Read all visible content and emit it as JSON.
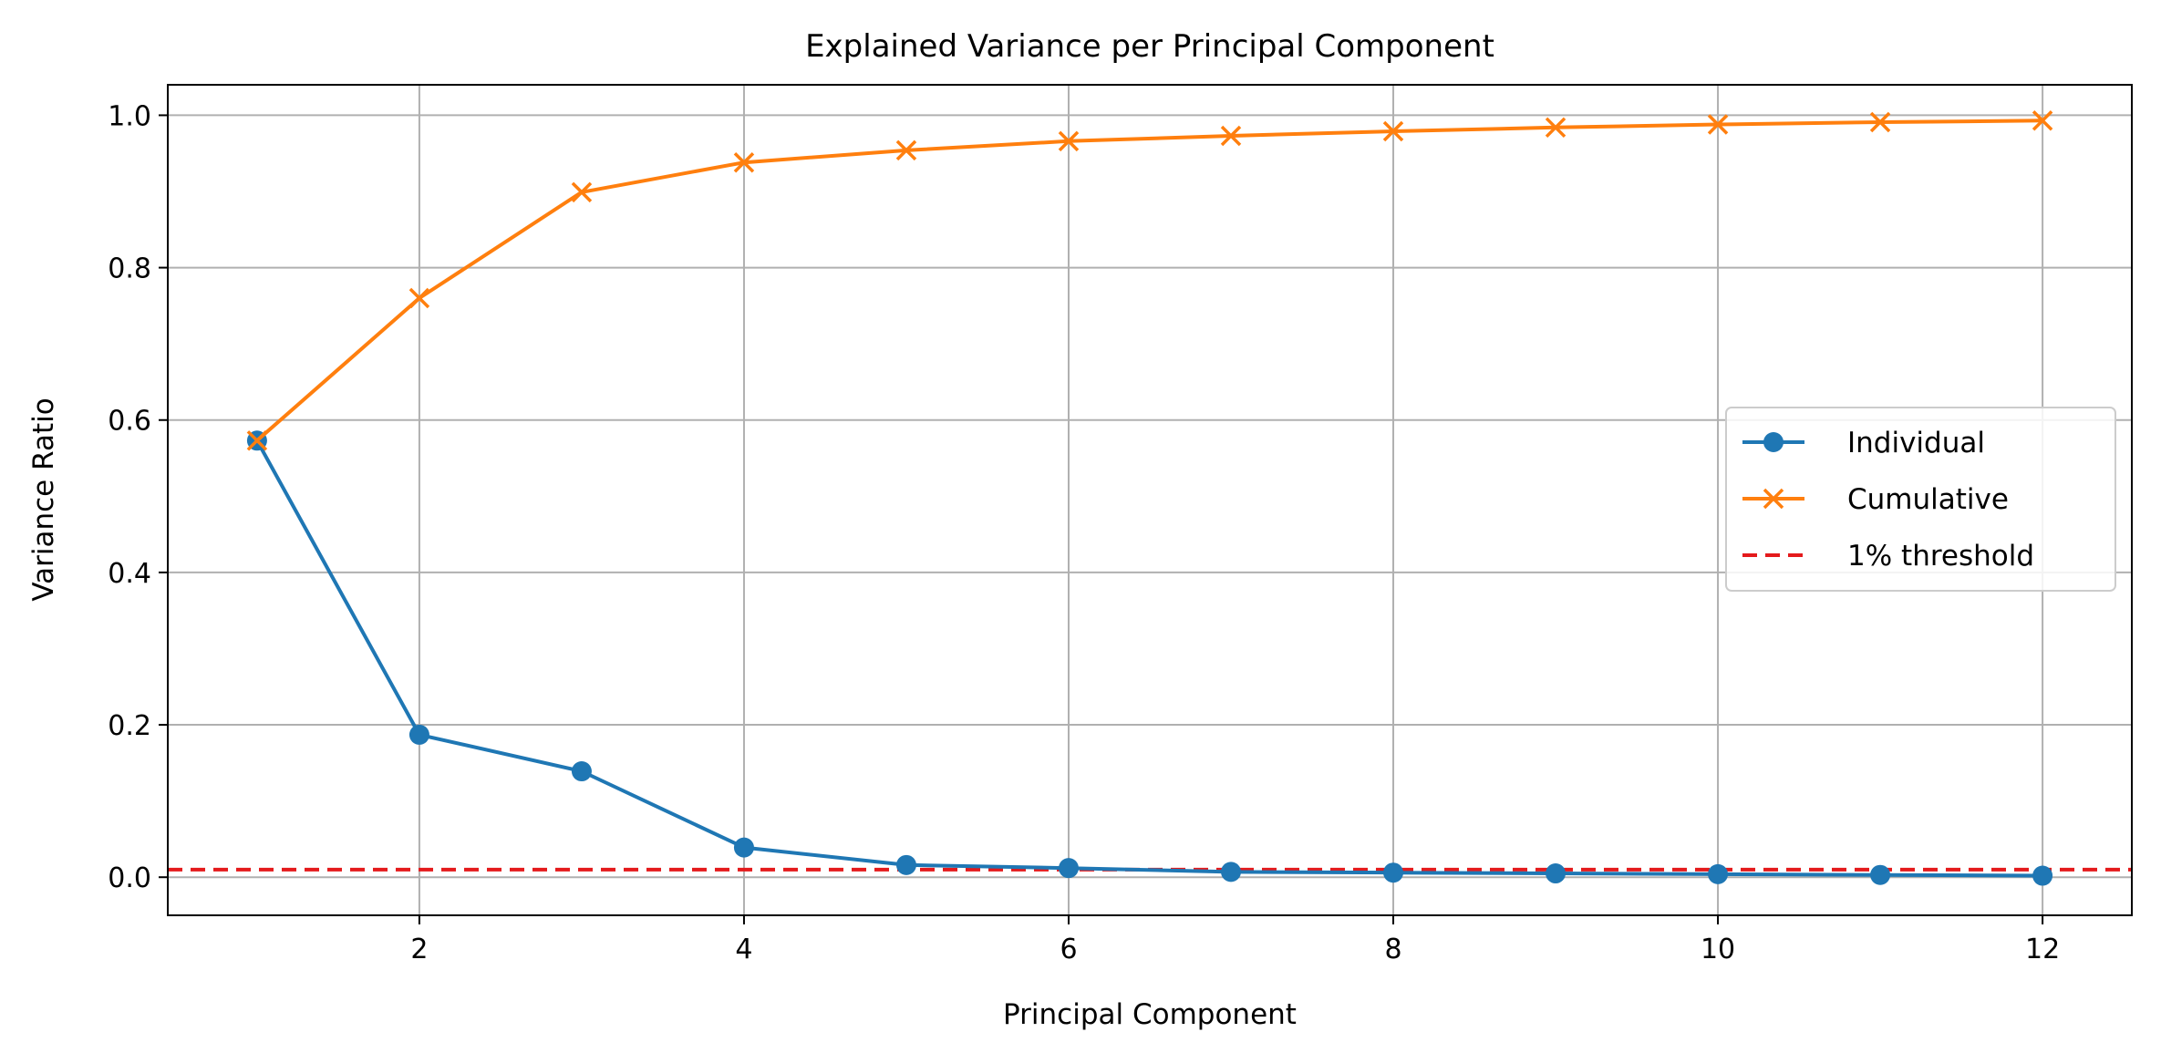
{
  "chart_data": {
    "type": "line",
    "title": "Explained Variance per Principal Component",
    "xlabel": "Principal Component",
    "ylabel": "Variance Ratio",
    "xlim": [
      0.45,
      12.55
    ],
    "ylim": [
      -0.05,
      1.04
    ],
    "xticks": [
      2,
      4,
      6,
      8,
      10,
      12
    ],
    "yticks": [
      0.0,
      0.2,
      0.4,
      0.6,
      0.8,
      1.0
    ],
    "xtick_labels": [
      "2",
      "4",
      "6",
      "8",
      "10",
      "12"
    ],
    "ytick_labels": [
      "0.0",
      "0.2",
      "0.4",
      "0.6",
      "0.8",
      "1.0"
    ],
    "grid": true,
    "legend_position": "center-right",
    "x": [
      1,
      2,
      3,
      4,
      5,
      6,
      7,
      8,
      9,
      10,
      11,
      12
    ],
    "series": [
      {
        "name": "Individual",
        "color": "#1f77b4",
        "marker": "circle",
        "values": [
          0.573,
          0.187,
          0.139,
          0.039,
          0.016,
          0.012,
          0.007,
          0.006,
          0.005,
          0.004,
          0.003,
          0.002
        ]
      },
      {
        "name": "Cumulative",
        "color": "#ff7f0e",
        "marker": "x",
        "values": [
          0.573,
          0.76,
          0.899,
          0.938,
          0.954,
          0.966,
          0.973,
          0.979,
          0.984,
          0.988,
          0.991,
          0.993
        ]
      }
    ],
    "threshold": {
      "name": "1% threshold",
      "value": 0.01,
      "color": "#e41a1c",
      "style": "dashed"
    }
  }
}
